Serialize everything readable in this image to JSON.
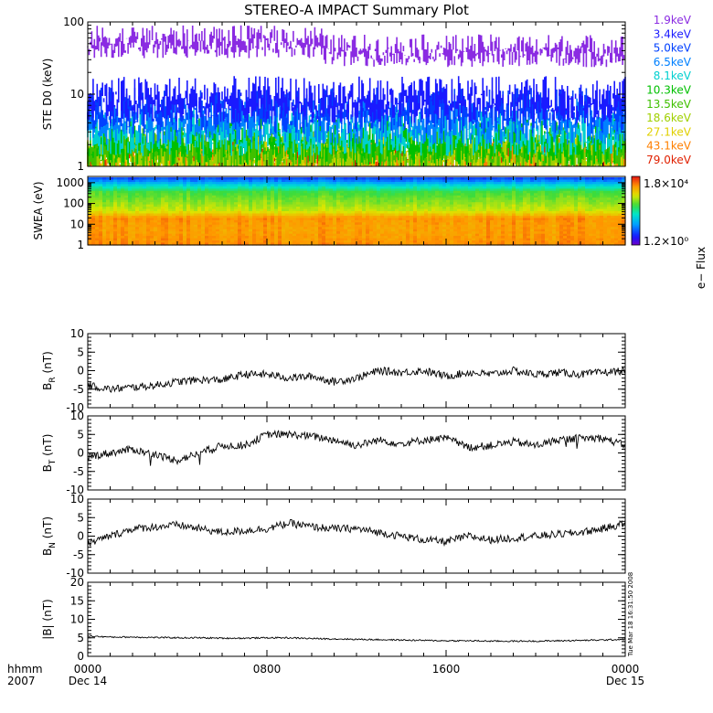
{
  "title": "STEREO-A IMPACT Summary Plot",
  "chart_data": [
    {
      "type": "line",
      "panel": "ste",
      "ylabel": "STE D0 (keV)",
      "yscale": "log",
      "ylim": [
        1,
        100
      ],
      "yticks": [
        "1",
        "10",
        "100"
      ],
      "series": [
        {
          "name": "1.9keV",
          "color": "#8a2be2",
          "level": 60
        },
        {
          "name": "3.4keV",
          "color": "#1a1aff",
          "level": 10
        },
        {
          "name": "5.0keV",
          "color": "#0040ff",
          "level": 7
        },
        {
          "name": "6.5keV",
          "color": "#0080ff",
          "level": 5
        },
        {
          "name": "8.1keV",
          "color": "#00d0d0",
          "level": 3.5
        },
        {
          "name": "10.3keV",
          "color": "#00c000",
          "level": 2.6
        },
        {
          "name": "13.5keV",
          "color": "#40c000",
          "level": 2.1
        },
        {
          "name": "18.6keV",
          "color": "#a0d000",
          "level": 1.8
        },
        {
          "name": "27.1keV",
          "color": "#e0d000",
          "level": 1.6
        },
        {
          "name": "43.1keV",
          "color": "#ff8000",
          "level": 1.45
        },
        {
          "name": "79.0keV",
          "color": "#e02000",
          "level": 1.3
        }
      ]
    },
    {
      "type": "heatmap",
      "panel": "swea",
      "ylabel": "SWEA (eV)",
      "yscale": "log",
      "ylim": [
        1,
        2000
      ],
      "yticks": [
        "1",
        "10",
        "100",
        "1000"
      ],
      "colorbar_label": "e− Flux",
      "colorbar_max": "1.8×10⁴",
      "colorbar_min": "1.2×10⁰"
    },
    {
      "type": "line",
      "panel": "br",
      "ylabel_main": "B",
      "ylabel_sub": "R",
      "ylabel_unit": " (nT)",
      "ylim": [
        -10,
        10
      ],
      "yticks": [
        "-10",
        "-5",
        "0",
        "5",
        "10"
      ],
      "x": [
        0,
        1,
        2,
        3,
        4,
        5,
        6,
        7,
        8,
        9,
        10,
        11,
        12,
        13,
        14,
        15,
        16,
        17,
        18,
        19,
        20,
        21,
        22,
        23,
        24
      ],
      "values": [
        -4,
        -5,
        -4.5,
        -4,
        -3,
        -2.5,
        -2.5,
        -1,
        -1,
        -2,
        -1.5,
        -3,
        -2,
        0,
        -0.5,
        0,
        -1.5,
        -0.5,
        -1,
        0,
        -1,
        -0.5,
        -1,
        -0.5,
        0
      ]
    },
    {
      "type": "line",
      "panel": "bt",
      "ylabel_main": "B",
      "ylabel_sub": "T",
      "ylabel_unit": " (nT)",
      "ylim": [
        -10,
        10
      ],
      "yticks": [
        "-10",
        "-5",
        "0",
        "5",
        "10"
      ],
      "x": [
        0,
        1,
        2,
        3,
        4,
        5,
        6,
        7,
        8,
        9,
        10,
        11,
        12,
        13,
        14,
        15,
        16,
        17,
        18,
        19,
        20,
        21,
        22,
        23,
        24
      ],
      "values": [
        -1,
        0,
        1,
        -0.5,
        -2,
        0,
        2,
        2,
        5,
        5,
        4.5,
        3.5,
        2,
        3.5,
        2.5,
        3.5,
        4,
        1.5,
        2,
        3,
        2,
        3.5,
        4,
        4,
        2
      ]
    },
    {
      "type": "line",
      "panel": "bn",
      "ylabel_main": "B",
      "ylabel_sub": "N",
      "ylabel_unit": " (nT)",
      "ylim": [
        -10,
        10
      ],
      "yticks": [
        "-10",
        "-5",
        "0",
        "5",
        "10"
      ],
      "x": [
        0,
        1,
        2,
        3,
        4,
        5,
        6,
        7,
        8,
        9,
        10,
        11,
        12,
        13,
        14,
        15,
        16,
        17,
        18,
        19,
        20,
        21,
        22,
        23,
        24
      ],
      "values": [
        -2,
        0,
        2,
        2.5,
        3,
        2,
        1,
        1.5,
        2,
        3.5,
        2.5,
        2,
        2,
        1,
        0,
        -1,
        -1.5,
        0,
        -1,
        -0.5,
        0,
        0.5,
        1,
        2,
        3.5
      ]
    },
    {
      "type": "line",
      "panel": "babs",
      "ylabel": "|B| (nT)",
      "ylim": [
        0,
        20
      ],
      "yticks": [
        "0",
        "5",
        "10",
        "15",
        "20"
      ],
      "x": [
        0,
        1,
        2,
        3,
        4,
        5,
        6,
        7,
        8,
        9,
        10,
        11,
        12,
        13,
        14,
        15,
        16,
        17,
        18,
        19,
        20,
        21,
        22,
        23,
        24
      ],
      "values": [
        5.5,
        5.2,
        5.2,
        5.1,
        5,
        5,
        4.9,
        4.9,
        5,
        5,
        4.8,
        4.7,
        4.6,
        4.5,
        4.4,
        4.3,
        4.2,
        4.2,
        4.1,
        4.1,
        4.1,
        4.2,
        4.3,
        4.4,
        4.6
      ]
    }
  ],
  "xaxis": {
    "label_line1": "hhmm",
    "label_line2": "2007",
    "ticks": [
      {
        "hour": 0,
        "time": "0000",
        "date": "Dec 14"
      },
      {
        "hour": 8,
        "time": "0800",
        "date": ""
      },
      {
        "hour": 16,
        "time": "1600",
        "date": ""
      },
      {
        "hour": 24,
        "time": "0000",
        "date": "Dec 15"
      }
    ],
    "range": [
      0,
      24
    ]
  },
  "timestamp": "Tue Mar 18 16:31:50 2008"
}
